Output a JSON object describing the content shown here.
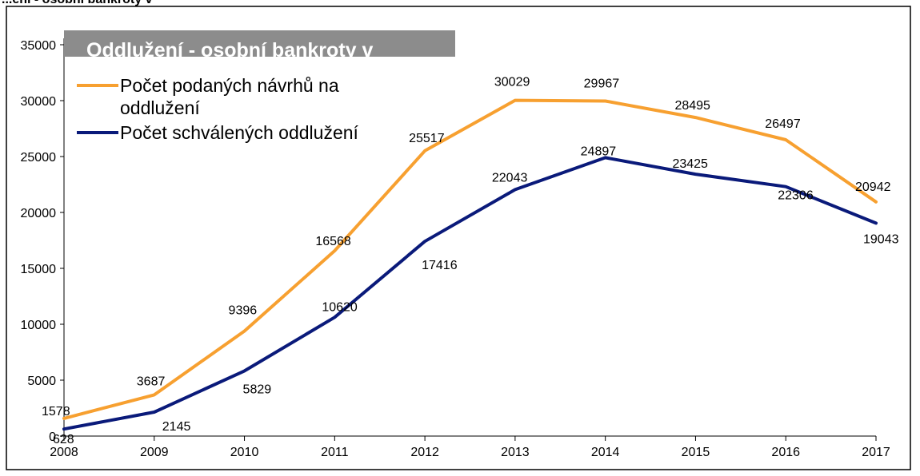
{
  "header_cut_text": "...ení - osobní bankroty v",
  "chart_data": {
    "type": "line",
    "title": "Oddlužení - osobní bankroty v",
    "x": [
      "2008",
      "2009",
      "2010",
      "2011",
      "2012",
      "2013",
      "2014",
      "2015",
      "2016",
      "2017"
    ],
    "ylim": [
      0,
      35000
    ],
    "yticks": [
      "0",
      "5000",
      "10000",
      "15000",
      "20000",
      "25000",
      "30000",
      "35000"
    ],
    "grid": false,
    "legend_position": "top-left",
    "series": [
      {
        "name": "Počet podaných návrhů na oddlužení",
        "legend_lines": [
          "Počet podaných návrhů na",
          "oddlužení"
        ],
        "color": "#f7a030",
        "values": [
          1578,
          3687,
          9396,
          16568,
          25517,
          30029,
          29967,
          28495,
          26497,
          20942
        ],
        "labels": [
          "1578",
          "3687",
          "9396",
          "16568",
          "25517",
          "30029",
          "29967",
          "28495",
          "26497",
          "20942"
        ]
      },
      {
        "name": "Počet schválených oddlužení",
        "legend_lines": [
          "Počet schválených oddlužení"
        ],
        "color": "#0a1a7a",
        "values": [
          628,
          2145,
          5829,
          10620,
          17416,
          22043,
          24897,
          23425,
          22306,
          19043
        ],
        "labels": [
          "628",
          "2145",
          "5829",
          "10620",
          "17416",
          "22043",
          "24897",
          "23425",
          "22306",
          "19043"
        ]
      }
    ]
  }
}
